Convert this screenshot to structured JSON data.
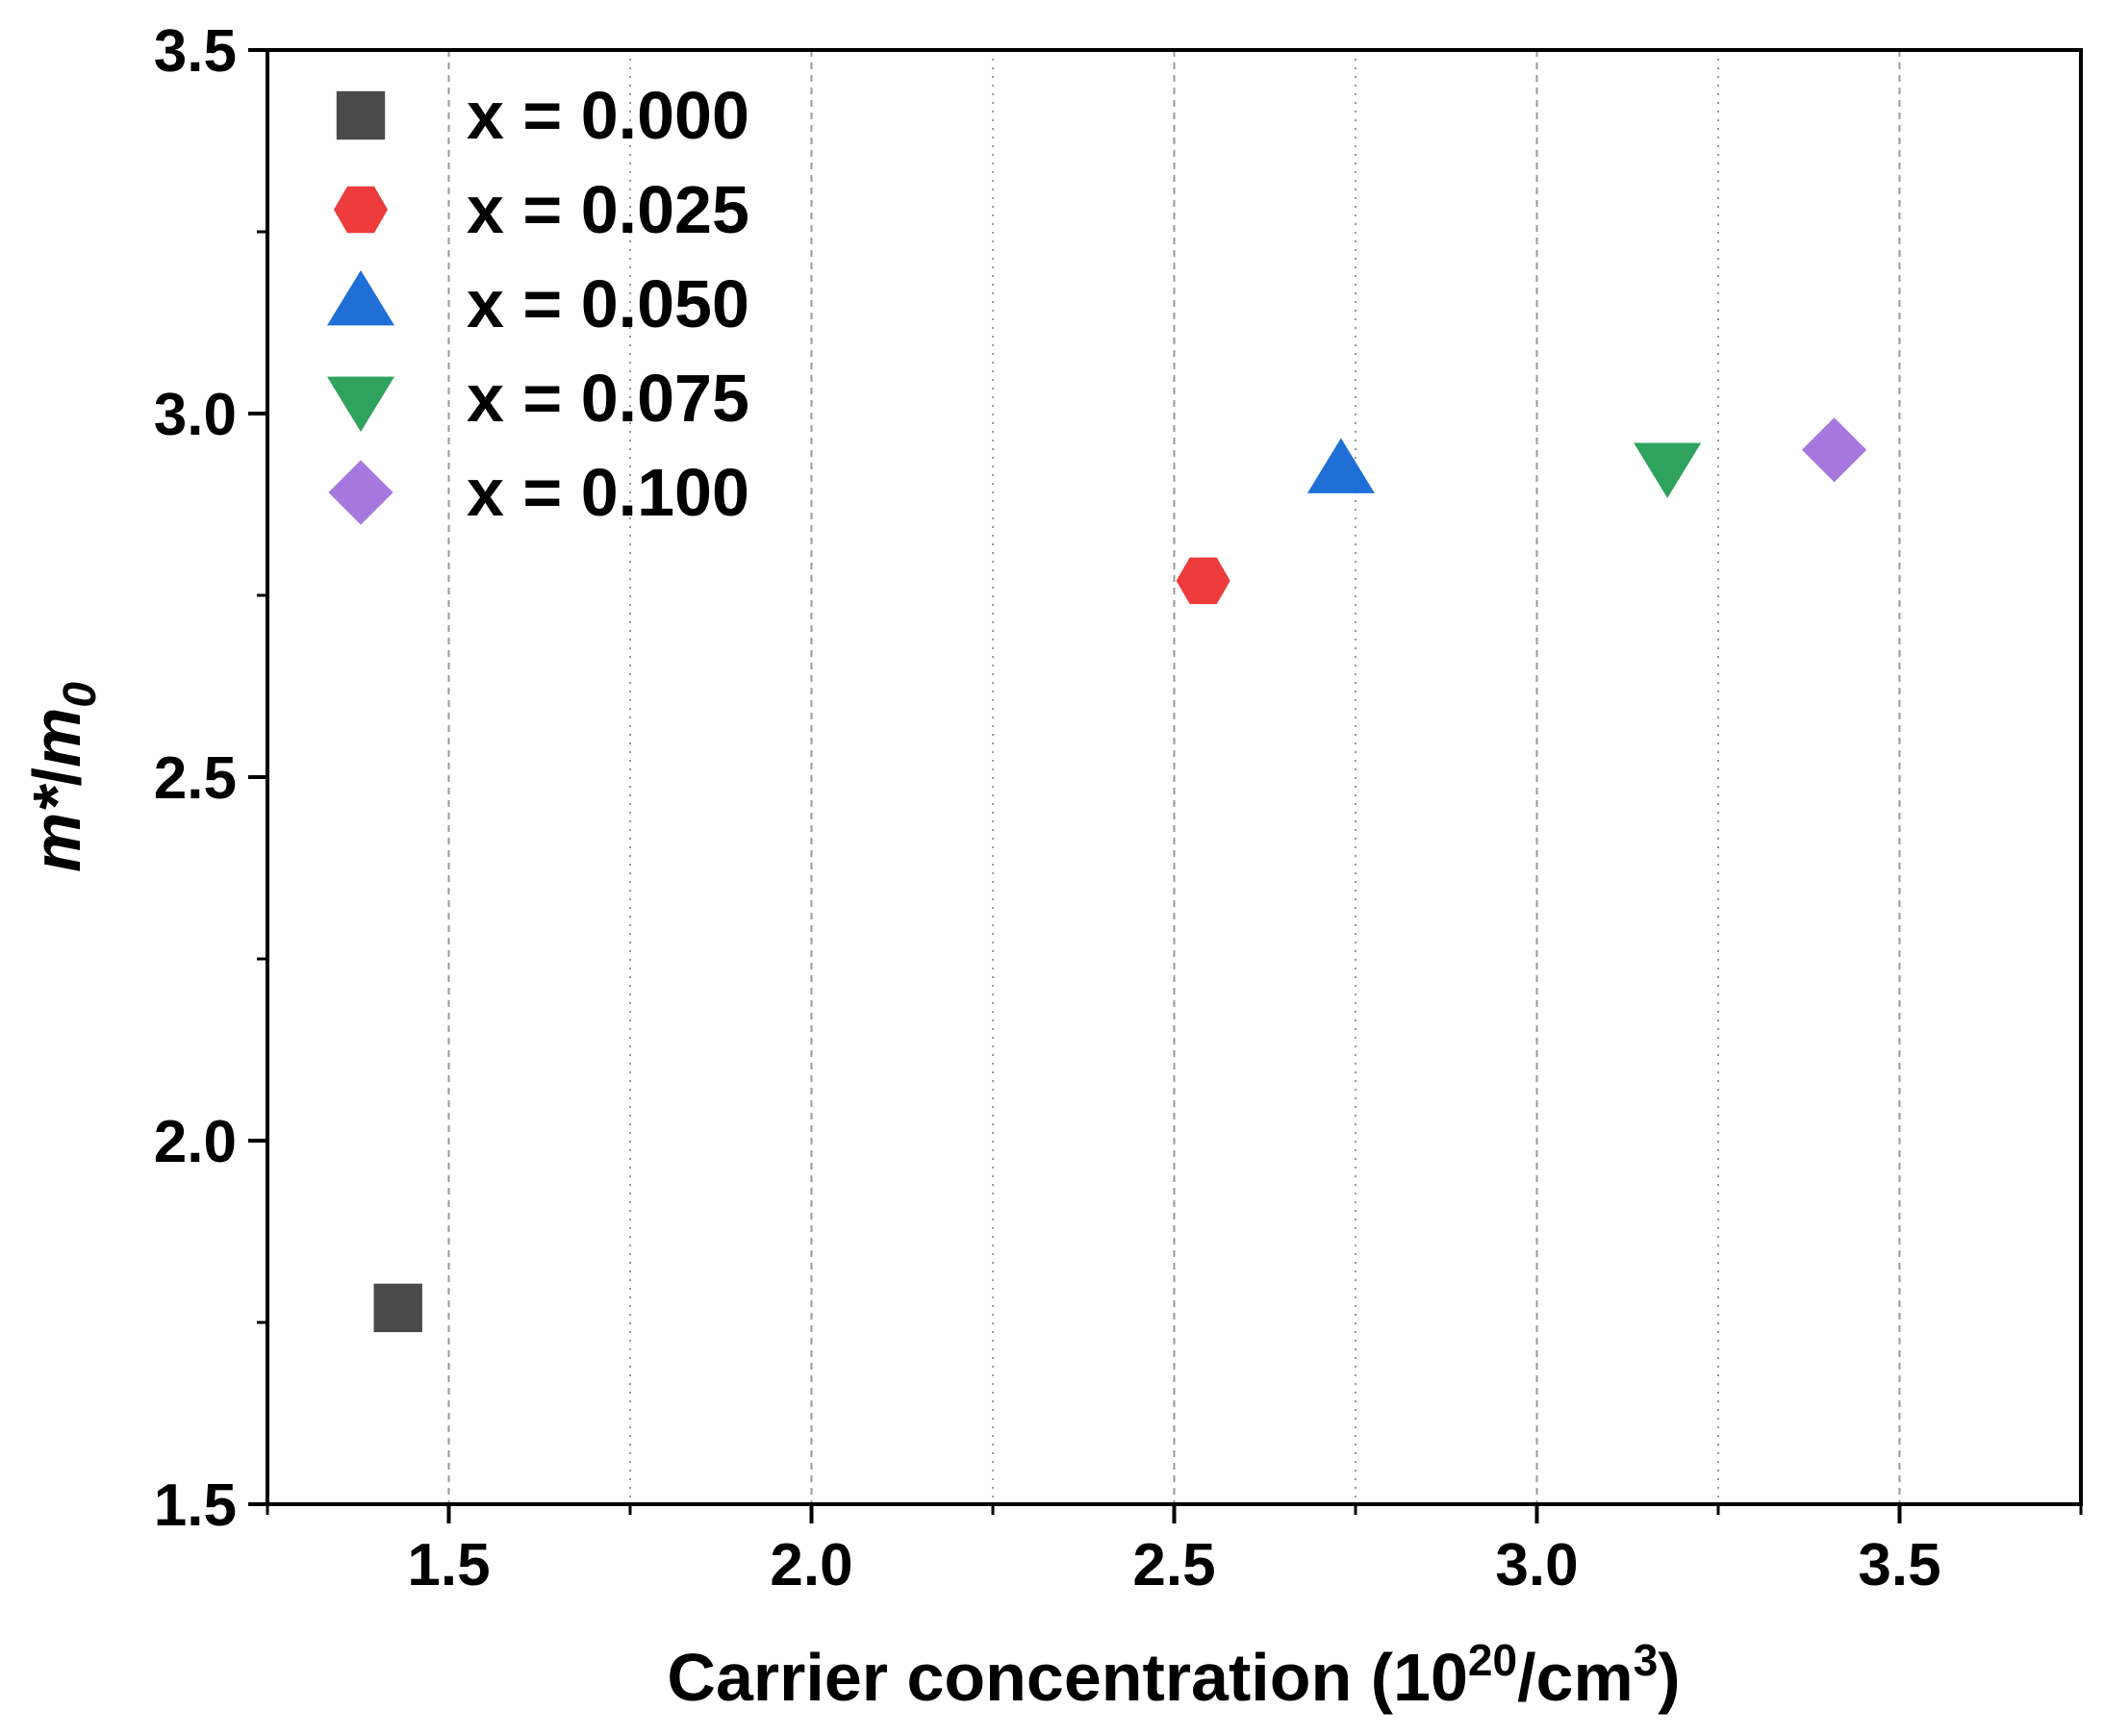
{
  "chart_data": {
    "type": "scatter",
    "title": "",
    "xlabel": {
      "main": "Carrier concentration (10",
      "sup1": "20",
      "mid": "/cm",
      "sup2": "3",
      "end": ")"
    },
    "ylabel": {
      "m_star": "m*",
      "slash": "/",
      "m": "m",
      "sub": "0"
    },
    "xlim": [
      1.25,
      3.75
    ],
    "ylim": [
      1.5,
      3.5
    ],
    "x_major_ticks": [
      1.5,
      2.0,
      2.5,
      3.0,
      3.5
    ],
    "x_tick_labels": [
      "1.5",
      "2.0",
      "2.5",
      "3.0",
      "3.5"
    ],
    "x_minor_ticks": [
      1.25,
      1.75,
      2.25,
      2.75,
      3.25,
      3.75
    ],
    "y_major_ticks": [
      1.5,
      2.0,
      2.5,
      3.0,
      3.5
    ],
    "y_tick_labels": [
      "1.5",
      "2.0",
      "2.5",
      "3.0",
      "3.5"
    ],
    "y_minor_ticks": [
      1.75,
      2.25,
      2.75,
      3.25
    ],
    "grid": "vertical dashed",
    "legend_position": "top-left",
    "series": [
      {
        "name": "x = 0.000",
        "marker": "square",
        "color": "#4a4a4a",
        "x": 1.43,
        "y": 1.77
      },
      {
        "name": "x = 0.025",
        "marker": "hexagon",
        "color": "#ee3b3b",
        "x": 2.54,
        "y": 2.77
      },
      {
        "name": "x = 0.050",
        "marker": "triangle-up",
        "color": "#1f6fd6",
        "x": 2.73,
        "y": 2.92
      },
      {
        "name": "x = 0.075",
        "marker": "triangle-down",
        "color": "#2fa25e",
        "x": 3.18,
        "y": 2.93
      },
      {
        "name": "x = 0.100",
        "marker": "diamond",
        "color": "#a678dd",
        "x": 3.41,
        "y": 2.95
      }
    ]
  }
}
